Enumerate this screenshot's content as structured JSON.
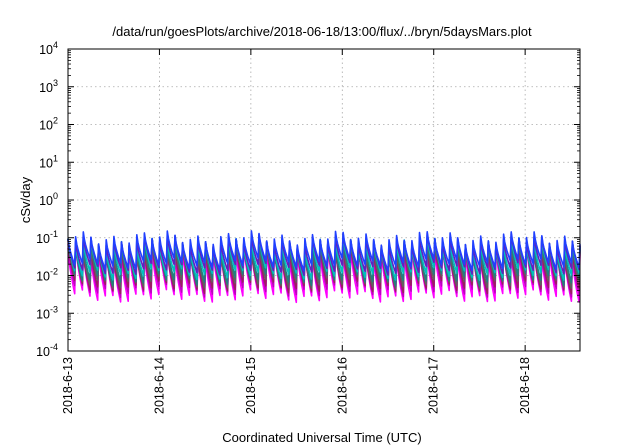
{
  "chart_data": {
    "type": "line",
    "title": "/data/run/goesPlots/archive/2018-06-18/13:00/flux/../bryn/5daysMars.plot",
    "xlabel": "Coordinated Universal Time (UTC)",
    "ylabel": "cSv/day",
    "y_scale": "log",
    "ylim_exponent": [
      -4,
      4
    ],
    "ytick_exponents": [
      "4",
      "3",
      "2",
      "1",
      "0",
      "-1",
      "-2",
      "-3",
      "-4"
    ],
    "ytick_base": "10",
    "xlim_days": [
      0,
      5.6
    ],
    "xtick_labels": [
      "2018-6-13",
      "2018-6-14",
      "2018-6-15",
      "2018-6-16",
      "2018-6-17",
      "2018-6-18"
    ],
    "grid": true,
    "legend": "none",
    "cycle_per_day": 12,
    "series": [
      {
        "color": "#ff00ff",
        "peak": 0.045,
        "trough": 0.0028
      },
      {
        "color": "#c000c0",
        "peak": 0.05,
        "trough": 0.004
      },
      {
        "color": "#9a2060",
        "peak": 0.055,
        "trough": 0.005
      },
      {
        "color": "#606060",
        "peak": 0.06,
        "trough": 0.0065
      },
      {
        "color": "#208080",
        "peak": 0.065,
        "trough": 0.008
      },
      {
        "color": "#00c0c0",
        "peak": 0.075,
        "trough": 0.011
      },
      {
        "color": "#6020c0",
        "peak": 0.085,
        "trough": 0.015
      },
      {
        "color": "#2040ff",
        "peak": 0.1,
        "trough": 0.02
      }
    ]
  }
}
